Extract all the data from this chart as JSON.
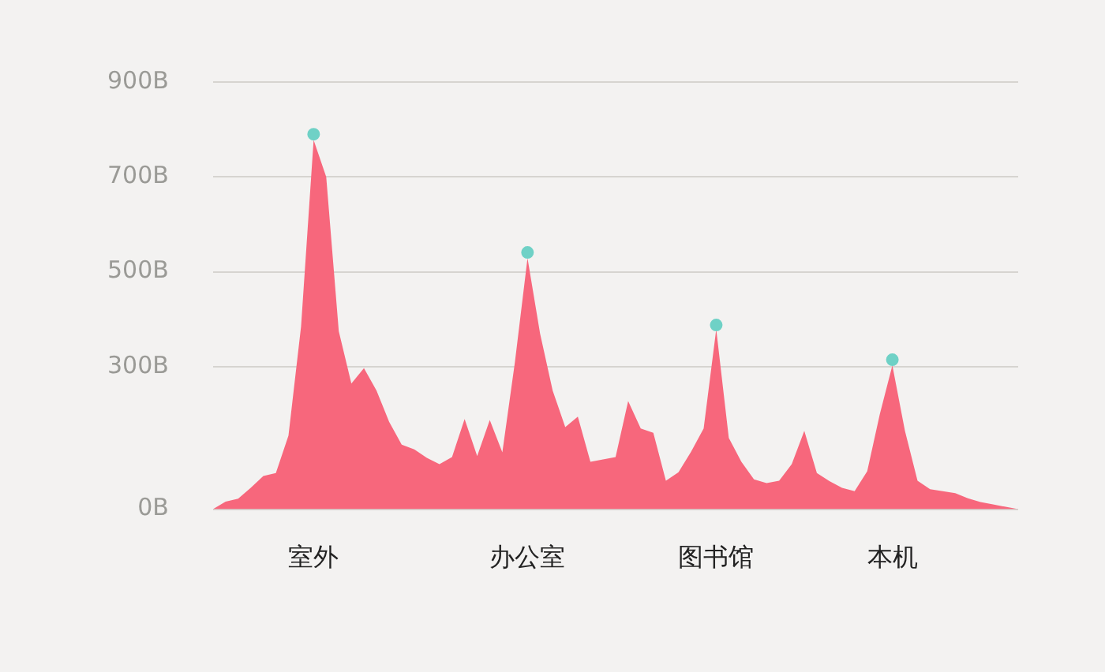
{
  "chart_data": {
    "type": "area",
    "categories": [
      null,
      null,
      null,
      null,
      null,
      null,
      null,
      null,
      "室外",
      null,
      null,
      null,
      null,
      null,
      null,
      null,
      null,
      null,
      null,
      null,
      null,
      null,
      null,
      null,
      null,
      "办公室",
      null,
      null,
      null,
      null,
      null,
      null,
      null,
      null,
      null,
      null,
      null,
      null,
      null,
      null,
      "图书馆",
      null,
      null,
      null,
      null,
      null,
      null,
      null,
      null,
      null,
      null,
      null,
      null,
      null,
      "本机",
      null,
      null,
      null,
      null,
      null,
      null,
      null,
      null,
      null,
      null
    ],
    "series": [
      {
        "color": "#f7677c",
        "values": [
          0,
          16,
          22,
          45,
          70,
          76,
          155,
          385,
          778,
          700,
          375,
          265,
          297,
          250,
          184,
          136,
          126,
          108,
          95,
          110,
          190,
          112,
          188,
          120,
          310,
          529,
          370,
          250,
          173,
          195,
          100,
          105,
          110,
          228,
          170,
          161,
          60,
          78,
          121,
          170,
          379,
          150,
          100,
          63,
          55,
          60,
          95,
          165,
          76,
          59,
          45,
          38,
          80,
          200,
          303,
          165,
          60,
          42,
          38,
          34,
          23,
          15,
          10,
          5,
          0
        ]
      },
      {
        "type": "scatter",
        "marker": "circle",
        "color": "#6fd1c6",
        "x": [
          "室外",
          "办公室",
          "图书馆",
          "本机"
        ],
        "values": [
          790,
          541,
          388,
          315
        ]
      }
    ],
    "ylim": [
      0,
      900
    ],
    "yticks": [
      {
        "value": 0,
        "label": "0B"
      },
      {
        "value": 300,
        "label": "300B"
      },
      {
        "value": 500,
        "label": "500B"
      },
      {
        "value": 700,
        "label": "700B"
      },
      {
        "value": 900,
        "label": "900B"
      }
    ],
    "grid": "y"
  }
}
